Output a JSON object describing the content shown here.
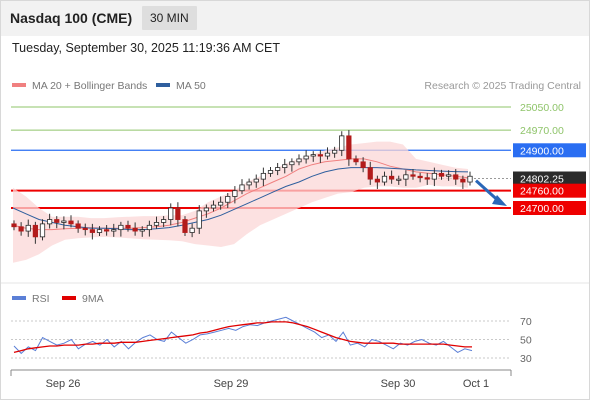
{
  "header": {
    "title": "Nasdaq 100 (CME)",
    "timeframe": "30 MIN",
    "datetime": "Tuesday, September 30, 2025 11:19:36 AM CET"
  },
  "legend": {
    "main": [
      {
        "name": "MA 20 + Bollinger Bands",
        "color": "#f08080"
      },
      {
        "name": "MA 50",
        "color": "#2f5f9e"
      }
    ],
    "rsi": [
      {
        "name": "RSI",
        "color": "#5b7fd6"
      },
      {
        "name": "9MA",
        "color": "#e00000"
      }
    ],
    "credit": "Research © 2025 Trading Central"
  },
  "chart_data": [
    {
      "type": "candlestick",
      "title": "",
      "y_range": [
        24500,
        25100
      ],
      "x_ticks": [
        "Sep 26",
        "Sep 29",
        "Sep 30",
        "Oct 1"
      ],
      "levels": [
        {
          "value": 25050.0,
          "label": "25050.00",
          "style": "target",
          "color": "#8fc46a"
        },
        {
          "value": 24970.0,
          "label": "24970.00",
          "style": "target",
          "color": "#8fc46a"
        },
        {
          "value": 24900.0,
          "label": "24900.00",
          "style": "pivot",
          "color": "#2a6ef2"
        },
        {
          "value": 24802.25,
          "label": "24802.25",
          "style": "last",
          "color": "#333333"
        },
        {
          "value": 24760.0,
          "label": "24760.00",
          "style": "support",
          "color": "#ee0000"
        },
        {
          "value": 24700.0,
          "label": "24700.00",
          "style": "support",
          "color": "#ee0000"
        }
      ],
      "close_path": [
        24635,
        24620,
        24640,
        24600,
        24645,
        24660,
        24650,
        24655,
        24645,
        24630,
        24625,
        24615,
        24625,
        24620,
        24625,
        24640,
        24630,
        24620,
        24625,
        24640,
        24650,
        24660,
        24700,
        24660,
        24615,
        24630,
        24690,
        24700,
        24710,
        24720,
        24740,
        24760,
        24780,
        24790,
        24800,
        24820,
        24830,
        24840,
        24850,
        24860,
        24870,
        24880,
        24885,
        24880,
        24890,
        24900,
        24950,
        24870,
        24860,
        24840,
        24800,
        24790,
        24810,
        24800,
        24800,
        24815,
        24810,
        24805,
        24800,
        24820,
        24810,
        24815,
        24800,
        24790,
        24810
      ],
      "bollinger_upper_path": [
        24770,
        24740,
        24700,
        24670,
        24670,
        24670,
        24665,
        24665,
        24668,
        24670,
        24672,
        24672,
        24675,
        24675,
        24690,
        24720,
        24740,
        24760,
        24790,
        24810,
        24830,
        24855,
        24870,
        24885,
        24900,
        24910,
        24920,
        24925,
        24930,
        24930,
        24920,
        24870,
        24860,
        24850,
        24840,
        24835
      ],
      "bollinger_lower_path": [
        24510,
        24520,
        24540,
        24570,
        24590,
        24595,
        24598,
        24600,
        24598,
        24595,
        24592,
        24590,
        24588,
        24585,
        24575,
        24570,
        24565,
        24575,
        24610,
        24640,
        24660,
        24680,
        24700,
        24720,
        24735,
        24750,
        24755,
        24770,
        24775,
        24775,
        24770,
        24770,
        24780,
        24775,
        24775,
        24770
      ],
      "ma20_path": [
        24640,
        24630,
        24625,
        24625,
        24628,
        24630,
        24632,
        24630,
        24630,
        24630,
        24632,
        24635,
        24640,
        24650,
        24665,
        24680,
        24700,
        24725,
        24750,
        24770,
        24790,
        24810,
        24835,
        24850,
        24860,
        24865,
        24870,
        24870,
        24860,
        24845,
        24835,
        24825,
        24820,
        24815,
        24810,
        24805
      ],
      "ma50_path": [
        24700,
        24680,
        24660,
        24650,
        24640,
        24635,
        24630,
        24630,
        24628,
        24625,
        24625,
        24628,
        24632,
        24640,
        24650,
        24660,
        24675,
        24695,
        24715,
        24735,
        24755,
        24775,
        24790,
        24810,
        24825,
        24835,
        24840,
        24840,
        24840,
        24838,
        24835,
        24832,
        24830,
        24828,
        24826,
        24825
      ]
    },
    {
      "type": "line",
      "title": "",
      "y_range": [
        20,
        80
      ],
      "y_ticks": [
        70,
        50,
        30
      ],
      "series": [
        {
          "name": "RSI",
          "values": [
            43,
            35,
            42,
            38,
            52,
            48,
            44,
            46,
            50,
            40,
            45,
            48,
            44,
            50,
            42,
            48,
            40,
            47,
            52,
            55,
            50,
            48,
            58,
            52,
            46,
            50,
            55,
            56,
            58,
            60,
            62,
            60,
            64,
            66,
            65,
            68,
            70,
            72,
            74,
            70,
            66,
            62,
            58,
            52,
            55,
            48,
            58,
            44,
            46,
            42,
            50,
            48,
            44,
            40,
            46,
            44,
            48,
            50,
            46,
            44,
            48,
            42,
            36,
            40,
            38
          ]
        },
        {
          "name": "9MA",
          "values": [
            36,
            38,
            40,
            41,
            42,
            43,
            43,
            44,
            44,
            44,
            45,
            45,
            46,
            46,
            46,
            47,
            47,
            47,
            48,
            49,
            50,
            51,
            52,
            53,
            54,
            55,
            57,
            58,
            60,
            62,
            64,
            65,
            66,
            67,
            68,
            68,
            69,
            69,
            69,
            68,
            66,
            64,
            61,
            58,
            55,
            52,
            50,
            48,
            47,
            46,
            46,
            46,
            46,
            46,
            45,
            45,
            45,
            45,
            45,
            45,
            45,
            44,
            43,
            42,
            42
          ]
        }
      ]
    }
  ]
}
